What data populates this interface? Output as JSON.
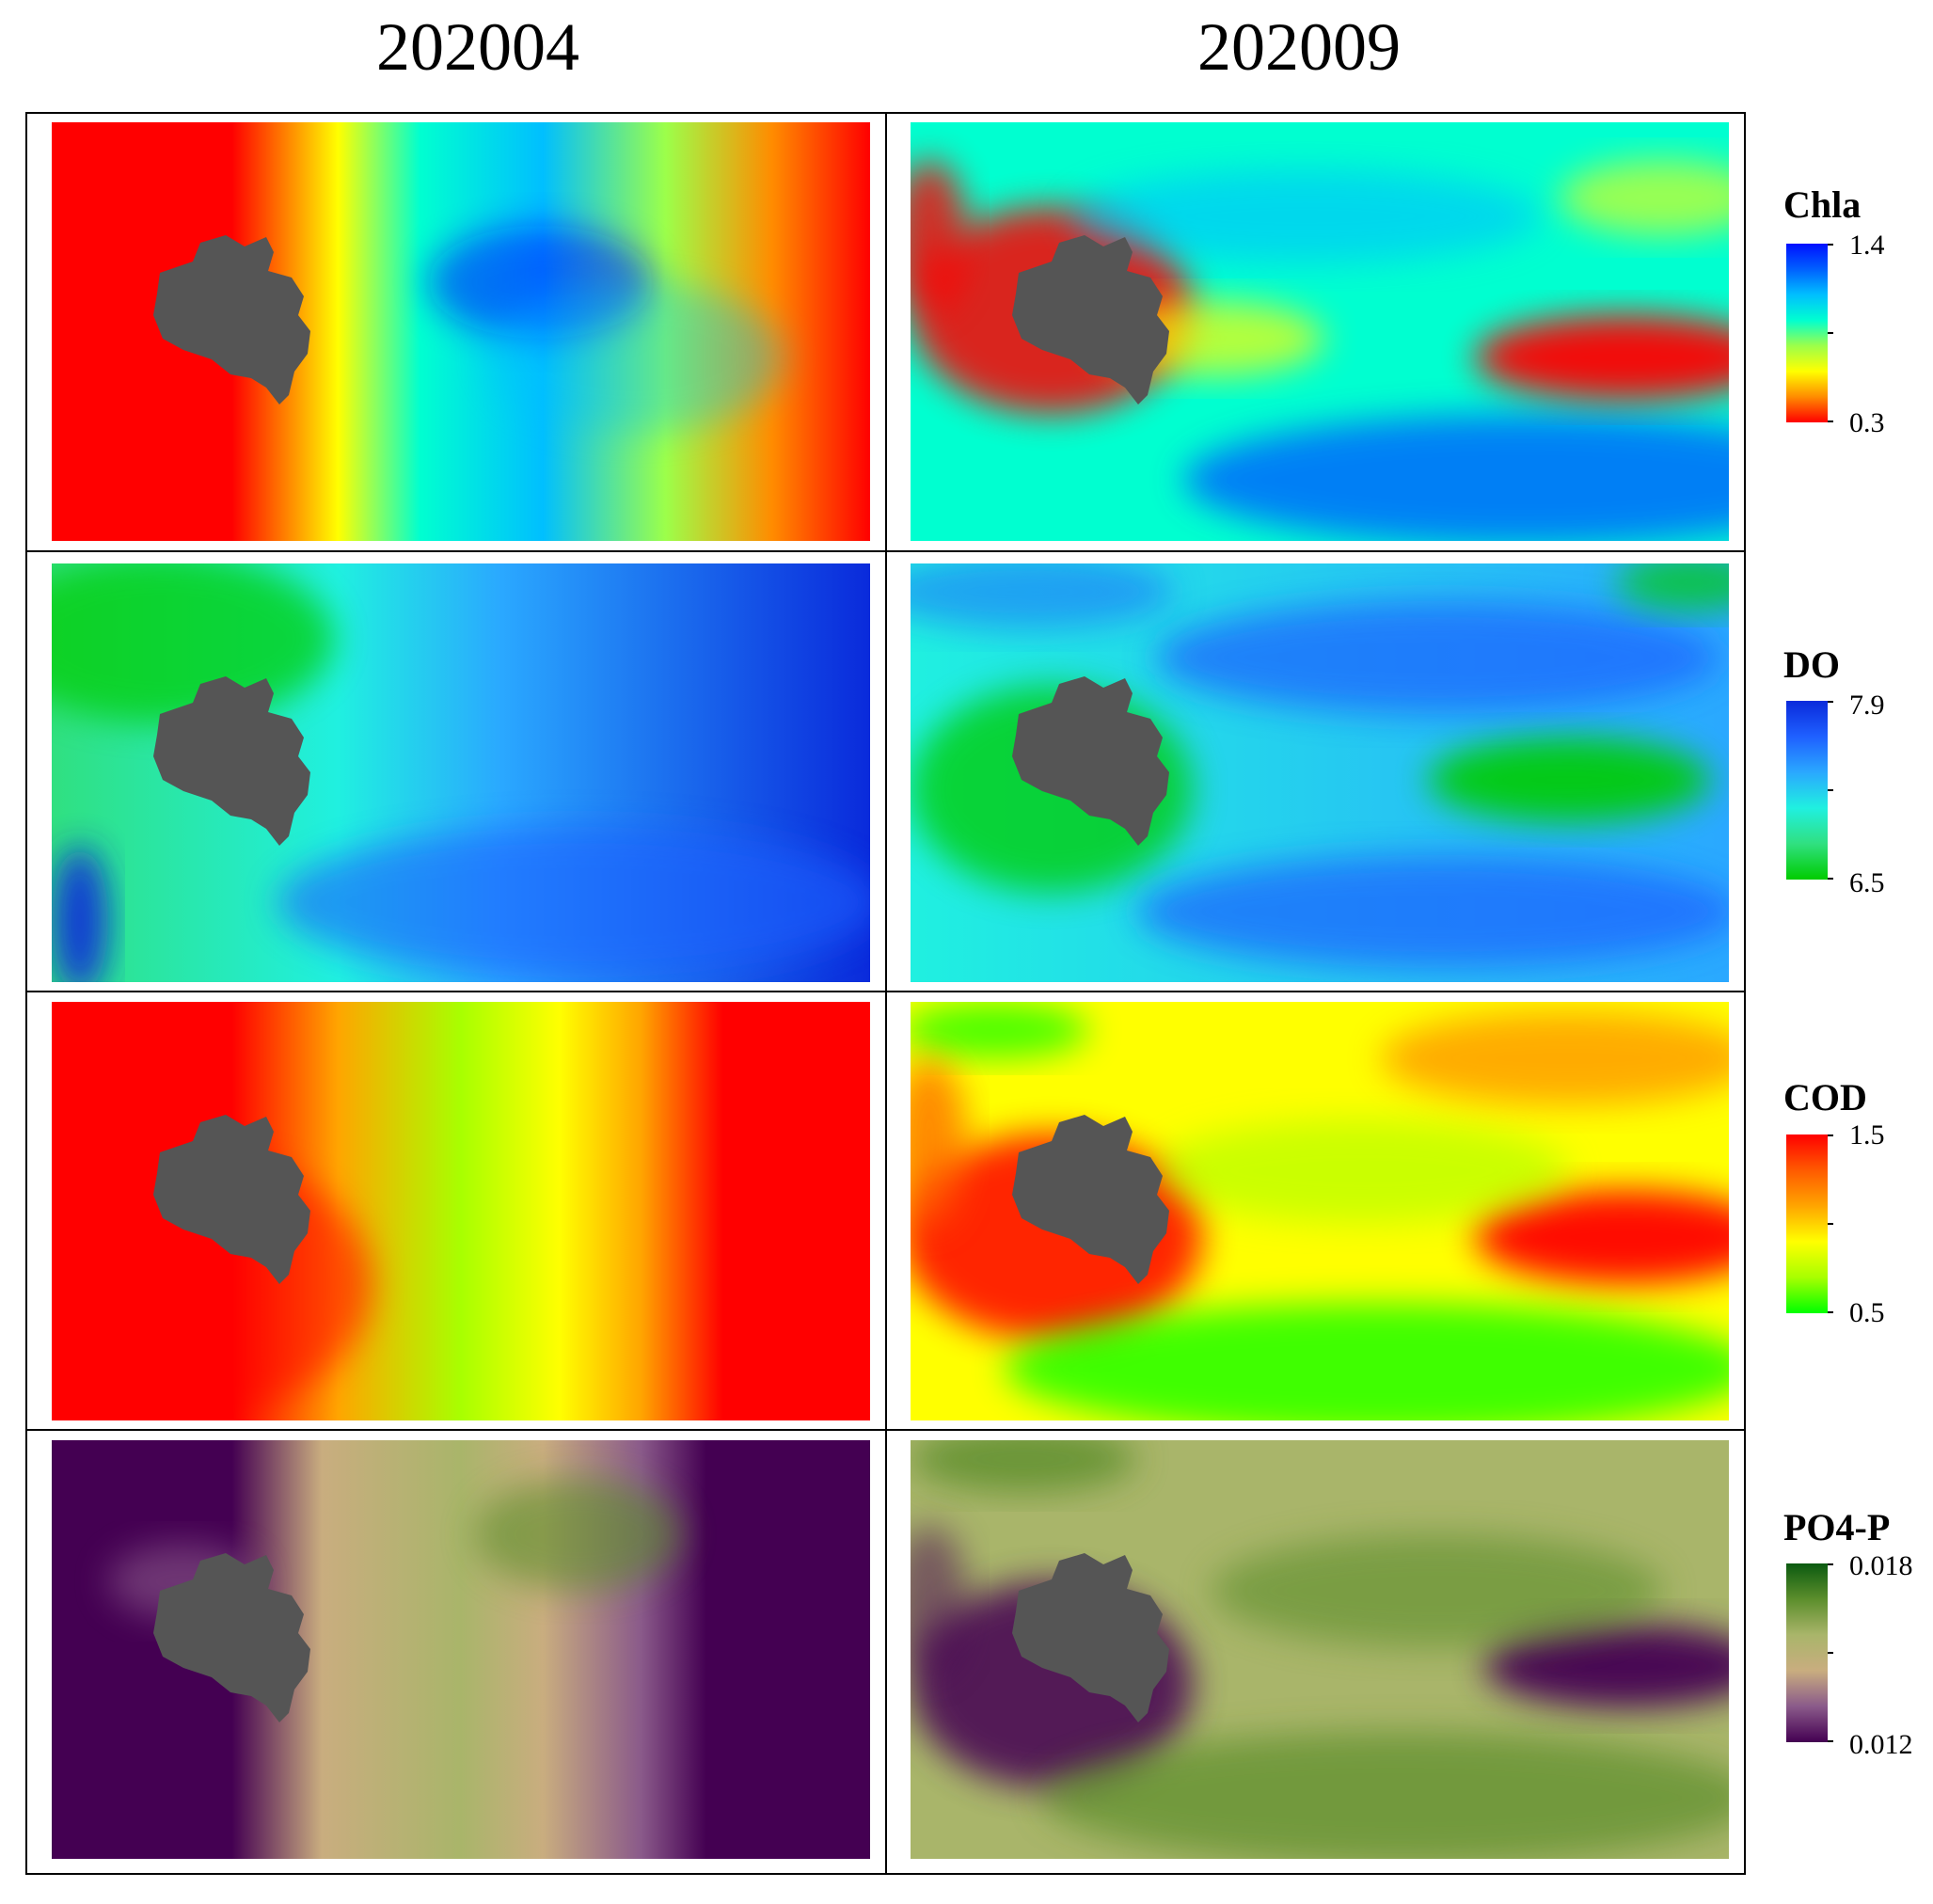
{
  "columns": [
    "202004",
    "202009"
  ],
  "rows": [
    {
      "parameter": "Chla",
      "legend_max": "1.4",
      "legend_min": "0.3",
      "colormap": [
        "#ff0000",
        "#ff8c00",
        "#ffff00",
        "#9cff4a",
        "#00ffd0",
        "#00bfff",
        "#0060ff",
        "#0010ff"
      ]
    },
    {
      "parameter": "DO",
      "legend_max": "7.9",
      "legend_min": "6.5",
      "colormap": [
        "#00cc00",
        "#30e080",
        "#20f0e0",
        "#2aa8ff",
        "#1f60ff",
        "#0a2adb"
      ]
    },
    {
      "parameter": "COD",
      "legend_max": "1.5",
      "legend_min": "0.5",
      "colormap": [
        "#00ff00",
        "#a8ff00",
        "#ffff00",
        "#ffa500",
        "#ff5a00",
        "#ff0000"
      ]
    },
    {
      "parameter": "PO4-P",
      "legend_max": "0.018",
      "legend_min": "0.012",
      "colormap": [
        "#440052",
        "#8a5a8a",
        "#c9ad7f",
        "#a9b56a",
        "#5c8e2c",
        "#0b5a10"
      ]
    }
  ],
  "island_color": "#555555"
}
